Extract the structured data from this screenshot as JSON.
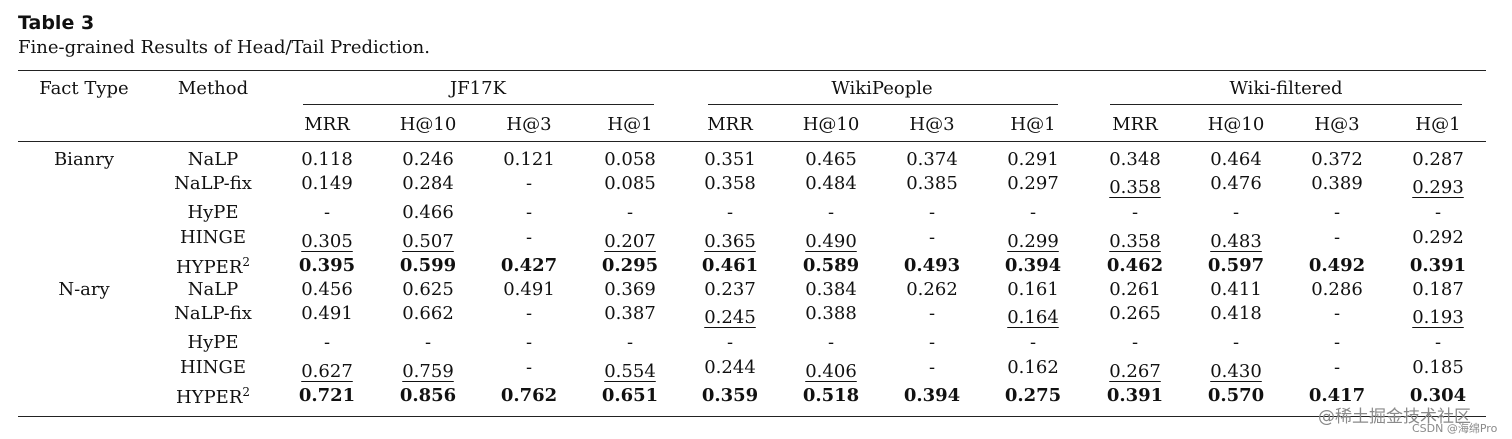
{
  "caption": {
    "label": "Table 3",
    "text": "Fine-grained Results of Head/Tail Prediction."
  },
  "columns": {
    "fact_type": "Fact Type",
    "method": "Method",
    "groups": [
      "JF17K",
      "WikiPeople",
      "Wiki-filtered"
    ],
    "metrics": [
      "MRR",
      "H@10",
      "H@3",
      "H@1"
    ]
  },
  "fact_types": [
    "Bianry",
    "N-ary"
  ],
  "rows": [
    {
      "method": "NaLP",
      "sup": "",
      "cells": [
        {
          "v": "0.118",
          "s": ""
        },
        {
          "v": "0.246",
          "s": ""
        },
        {
          "v": "0.121",
          "s": ""
        },
        {
          "v": "0.058",
          "s": ""
        },
        {
          "v": "0.351",
          "s": ""
        },
        {
          "v": "0.465",
          "s": ""
        },
        {
          "v": "0.374",
          "s": ""
        },
        {
          "v": "0.291",
          "s": ""
        },
        {
          "v": "0.348",
          "s": ""
        },
        {
          "v": "0.464",
          "s": ""
        },
        {
          "v": "0.372",
          "s": ""
        },
        {
          "v": "0.287",
          "s": ""
        }
      ]
    },
    {
      "method": "NaLP-fix",
      "sup": "",
      "cells": [
        {
          "v": "0.149",
          "s": ""
        },
        {
          "v": "0.284",
          "s": ""
        },
        {
          "v": "-",
          "s": ""
        },
        {
          "v": "0.085",
          "s": ""
        },
        {
          "v": "0.358",
          "s": ""
        },
        {
          "v": "0.484",
          "s": ""
        },
        {
          "v": "0.385",
          "s": ""
        },
        {
          "v": "0.297",
          "s": ""
        },
        {
          "v": "0.358",
          "s": "u"
        },
        {
          "v": "0.476",
          "s": ""
        },
        {
          "v": "0.389",
          "s": ""
        },
        {
          "v": "0.293",
          "s": "u"
        }
      ]
    },
    {
      "method": "HyPE",
      "sup": "",
      "cells": [
        {
          "v": "-",
          "s": ""
        },
        {
          "v": "0.466",
          "s": ""
        },
        {
          "v": "-",
          "s": ""
        },
        {
          "v": "-",
          "s": ""
        },
        {
          "v": "-",
          "s": ""
        },
        {
          "v": "-",
          "s": ""
        },
        {
          "v": "-",
          "s": ""
        },
        {
          "v": "-",
          "s": ""
        },
        {
          "v": "-",
          "s": ""
        },
        {
          "v": "-",
          "s": ""
        },
        {
          "v": "-",
          "s": ""
        },
        {
          "v": "-",
          "s": ""
        }
      ]
    },
    {
      "method": "HINGE",
      "sup": "",
      "cells": [
        {
          "v": "0.305",
          "s": "u"
        },
        {
          "v": "0.507",
          "s": "u"
        },
        {
          "v": "-",
          "s": ""
        },
        {
          "v": "0.207",
          "s": "u"
        },
        {
          "v": "0.365",
          "s": "u"
        },
        {
          "v": "0.490",
          "s": "u"
        },
        {
          "v": "-",
          "s": ""
        },
        {
          "v": "0.299",
          "s": "u"
        },
        {
          "v": "0.358",
          "s": "u"
        },
        {
          "v": "0.483",
          "s": "u"
        },
        {
          "v": "-",
          "s": ""
        },
        {
          "v": "0.292",
          "s": ""
        }
      ]
    },
    {
      "method": "HYPER",
      "sup": "2",
      "cells": [
        {
          "v": "0.395",
          "s": "b"
        },
        {
          "v": "0.599",
          "s": "b"
        },
        {
          "v": "0.427",
          "s": "b"
        },
        {
          "v": "0.295",
          "s": "b"
        },
        {
          "v": "0.461",
          "s": "b"
        },
        {
          "v": "0.589",
          "s": "b"
        },
        {
          "v": "0.493",
          "s": "b"
        },
        {
          "v": "0.394",
          "s": "b"
        },
        {
          "v": "0.462",
          "s": "b"
        },
        {
          "v": "0.597",
          "s": "b"
        },
        {
          "v": "0.492",
          "s": "b"
        },
        {
          "v": "0.391",
          "s": "b"
        }
      ]
    },
    {
      "method": "NaLP",
      "sup": "",
      "cells": [
        {
          "v": "0.456",
          "s": ""
        },
        {
          "v": "0.625",
          "s": ""
        },
        {
          "v": "0.491",
          "s": ""
        },
        {
          "v": "0.369",
          "s": ""
        },
        {
          "v": "0.237",
          "s": ""
        },
        {
          "v": "0.384",
          "s": ""
        },
        {
          "v": "0.262",
          "s": ""
        },
        {
          "v": "0.161",
          "s": ""
        },
        {
          "v": "0.261",
          "s": ""
        },
        {
          "v": "0.411",
          "s": ""
        },
        {
          "v": "0.286",
          "s": ""
        },
        {
          "v": "0.187",
          "s": ""
        }
      ]
    },
    {
      "method": "NaLP-fix",
      "sup": "",
      "cells": [
        {
          "v": "0.491",
          "s": ""
        },
        {
          "v": "0.662",
          "s": ""
        },
        {
          "v": "-",
          "s": ""
        },
        {
          "v": "0.387",
          "s": ""
        },
        {
          "v": "0.245",
          "s": "u"
        },
        {
          "v": "0.388",
          "s": ""
        },
        {
          "v": "-",
          "s": ""
        },
        {
          "v": "0.164",
          "s": "u"
        },
        {
          "v": "0.265",
          "s": ""
        },
        {
          "v": "0.418",
          "s": ""
        },
        {
          "v": "-",
          "s": ""
        },
        {
          "v": "0.193",
          "s": "u"
        }
      ]
    },
    {
      "method": "HyPE",
      "sup": "",
      "cells": [
        {
          "v": "-",
          "s": ""
        },
        {
          "v": "-",
          "s": ""
        },
        {
          "v": "-",
          "s": ""
        },
        {
          "v": "-",
          "s": ""
        },
        {
          "v": "-",
          "s": ""
        },
        {
          "v": "-",
          "s": ""
        },
        {
          "v": "-",
          "s": ""
        },
        {
          "v": "-",
          "s": ""
        },
        {
          "v": "-",
          "s": ""
        },
        {
          "v": "-",
          "s": ""
        },
        {
          "v": "-",
          "s": ""
        },
        {
          "v": "-",
          "s": ""
        }
      ]
    },
    {
      "method": "HINGE",
      "sup": "",
      "cells": [
        {
          "v": "0.627",
          "s": "u"
        },
        {
          "v": "0.759",
          "s": "u"
        },
        {
          "v": "-",
          "s": ""
        },
        {
          "v": "0.554",
          "s": "u"
        },
        {
          "v": "0.244",
          "s": ""
        },
        {
          "v": "0.406",
          "s": "u"
        },
        {
          "v": "-",
          "s": ""
        },
        {
          "v": "0.162",
          "s": ""
        },
        {
          "v": "0.267",
          "s": "u"
        },
        {
          "v": "0.430",
          "s": "u"
        },
        {
          "v": "-",
          "s": ""
        },
        {
          "v": "0.185",
          "s": ""
        }
      ]
    },
    {
      "method": "HYPER",
      "sup": "2",
      "cells": [
        {
          "v": "0.721",
          "s": "b"
        },
        {
          "v": "0.856",
          "s": "b"
        },
        {
          "v": "0.762",
          "s": "b"
        },
        {
          "v": "0.651",
          "s": "b"
        },
        {
          "v": "0.359",
          "s": "b"
        },
        {
          "v": "0.518",
          "s": "b"
        },
        {
          "v": "0.394",
          "s": "b"
        },
        {
          "v": "0.275",
          "s": "b"
        },
        {
          "v": "0.391",
          "s": "b"
        },
        {
          "v": "0.570",
          "s": "b"
        },
        {
          "v": "0.417",
          "s": "b"
        },
        {
          "v": "0.304",
          "s": "b"
        }
      ]
    }
  ],
  "watermark": {
    "main": "@稀土掘金技术社区",
    "sub": "CSDN @海绵Pro"
  }
}
